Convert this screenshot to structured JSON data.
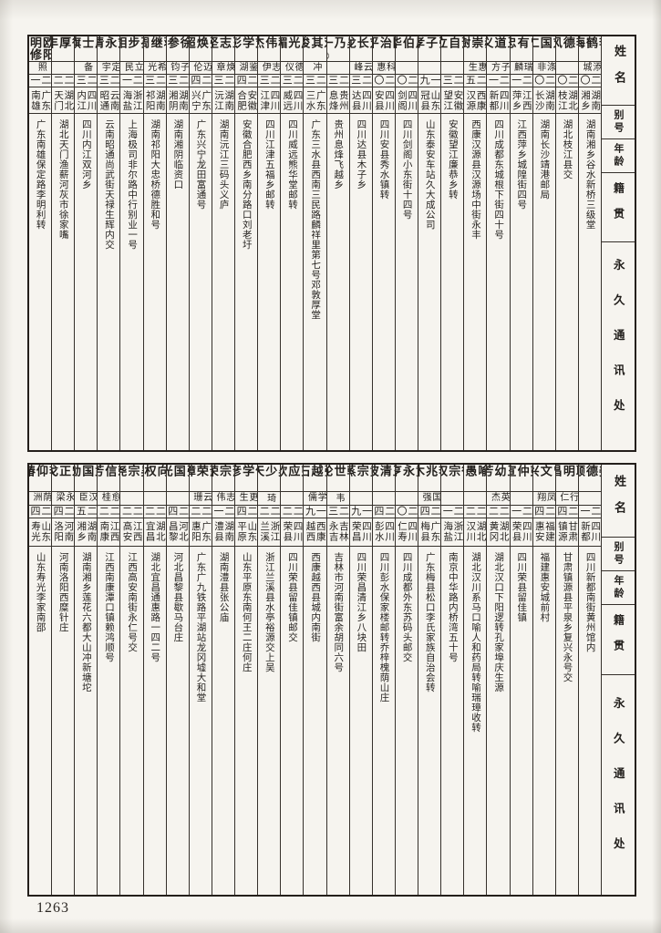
{
  "page": {
    "number": "1263"
  },
  "headers": {
    "name": "姓名",
    "alias": "别号",
    "age": "年龄",
    "native": "籍贯",
    "address": "永久通讯处"
  },
  "tables": {
    "top": {
      "people": [
        {
          "name": "李鹤梅",
          "alias": "添城",
          "age": "二〇",
          "native": "湖南湘乡",
          "address": "湖南湘乡谷水新桥三级堂"
        },
        {
          "name": "李德风",
          "alias": "",
          "age": "二〇",
          "native": "湖北枝江",
          "address": "湖北枝江县交"
        },
        {
          "name": "刘国仁",
          "alias": "涤非",
          "age": "二〇",
          "native": "湖南长沙",
          "address": "湖南长沙靖港邮局"
        },
        {
          "name": "曾有忠",
          "alias": "瑞麟",
          "age": "二一",
          "native": "江西萍乡",
          "address": "江西萍乡城隍街四号"
        },
        {
          "name": "王道义",
          "alias": "子方",
          "age": "二一",
          "native": "四川新都",
          "address": "四川成都东城根下街四十号"
        },
        {
          "name": "郝崇澍",
          "alias": "惠生",
          "age": "二五",
          "native": "西康汉源",
          "address": "西康汉源县汉源场中街永丰"
        },
        {
          "name": "萧自立",
          "alias": "",
          "age": "二三",
          "native": "安徽望江",
          "address": "安徽望江廉恭乡转"
        },
        {
          "name": "张子孝",
          "alias": "",
          "age": "一九",
          "native": "山东冠县",
          "address": "山东泰安车站久大成公司"
        },
        {
          "name": "周伯华",
          "alias": "",
          "age": "二〇",
          "native": "四川剑阁",
          "address": "四川剑阁小东街十四号"
        },
        {
          "name": "陈治平",
          "alias": "科惠",
          "age": "二〇",
          "native": "四川安县",
          "address": "四川安县秀水镇转"
        },
        {
          "name": "刘长龙",
          "alias": "云峰",
          "age": "二三",
          "native": "四川达县",
          "address": "四川达县木子乡"
        },
        {
          "name": "吴乃一",
          "mark": "㊛",
          "alias": "",
          "age": "二三",
          "native": "贵州息烽",
          "address": "贵州息烽飞越乡"
        },
        {
          "name": "邓其俊",
          "alias": "冲",
          "age": "二三",
          "native": "广东三水",
          "address": "广东三水县西南三民路麟祥里第七号邓敦厚堂"
        },
        {
          "name": "周光楣",
          "alias": "德仪",
          "age": "二三",
          "native": "四川威远",
          "address": "四川威远熊华堂邮转"
        },
        {
          "name": "程伟杰",
          "alias": "志伊",
          "age": "二三",
          "native": "四川江津",
          "address": "四川江津五福乡邮转"
        },
        {
          "name": "刘学彭",
          "alias": "鉴湖",
          "age": "二四",
          "native": "安徽合肥",
          "address": "安徽合肥西乡南分路口刘老圩"
        },
        {
          "name": "王志坚",
          "alias": "焕章",
          "age": "二三",
          "native": "湖南沅江",
          "address": "湖南沅江三码头义庐"
        },
        {
          "name": "张焕超",
          "alias": "迈伦",
          "age": "二四",
          "native": "广东兴宁",
          "address": "广东兴宁龙田富通号"
        },
        {
          "name": "徐参",
          "alias": "子钧",
          "age": "二三",
          "native": "湖南湘阴",
          "address": "湖南湘阴临资口"
        },
        {
          "name": "蒋继周",
          "alias": "希光",
          "age": "二三",
          "native": "湖南祁阳",
          "address": "湖南祁阳大忠桥德胜和号"
        },
        {
          "name": "孙步相",
          "alias": "立民",
          "age": "二一",
          "native": "浙江海盐",
          "address": "上海极司非尔路中行别业一号"
        },
        {
          "name": "刘永清",
          "alias": "定宇",
          "age": "二三",
          "native": "云南昭通",
          "address": "云南昭通尚武街天禄生辉内交"
        },
        {
          "name": "周士旗",
          "alias": "备",
          "age": "二三",
          "native": "四川内江",
          "address": "四川内江双河乡"
        },
        {
          "name": "徐厚丰",
          "alias": "",
          "age": "二二",
          "native": "湖北天门",
          "address": "湖北天门渔薪河灰市徐家嘴"
        },
        {
          "name": "欧阳明修",
          "alias": "照",
          "age": "二一",
          "native": "广东南雄",
          "address": "广东南雄保定路李明利转"
        }
      ]
    },
    "bottom": {
      "people": [
        {
          "name": "姜德颐",
          "alias": "",
          "age": "二一",
          "native": "四川新都",
          "address": "四川新都南街黄州馆内"
        },
        {
          "name": "耿明昌",
          "alias": "行仁",
          "age": "二四",
          "native": "甘肃镇源",
          "address": "甘肃镇源县平泉乡复兴永号交"
        },
        {
          "name": "曾文兴",
          "alias": "凤翔",
          "age": "二四",
          "native": "福建惠安",
          "address": "福建惠安城前村"
        },
        {
          "name": "彭仲宣",
          "alias": "",
          "age": "二一",
          "native": "四川荣县",
          "address": "四川荣县留佳镇"
        },
        {
          "name": "王幼芳",
          "alias": "英杰",
          "age": "二二",
          "native": "湖北黄冈",
          "address": "湖北汉口下阳逻转孔家埠庆生源"
        },
        {
          "name": "喻愚",
          "alias": "",
          "age": "二二",
          "native": "湖北汉川",
          "address": "湖北汉川系马口喻人和药局转喻瑞璋收转"
        },
        {
          "name": "徐宗权",
          "alias": "",
          "age": "二一",
          "native": "浙江海盐",
          "address": "南京中华路内桥湾五十号"
        },
        {
          "name": "李兆木",
          "alias": "国强",
          "age": "二四",
          "native": "广东梅县",
          "address": "广东梅县松口李氏家族自治会转"
        },
        {
          "name": "黄永亨",
          "alias": "",
          "age": "二〇",
          "native": "四川仁寿",
          "address": "四川成都外东苏码头邮交"
        },
        {
          "name": "王清波",
          "alias": "",
          "age": "二四",
          "native": "四川彭水",
          "address": "四川彭水保家楼邮转乔梓槐荫山庄"
        },
        {
          "name": "黄宗蒸",
          "alias": "",
          "age": "一九",
          "native": "四川荣昌",
          "address": "四川荣昌清江乡八块田"
        },
        {
          "name": "韩世纶",
          "alias": "韦",
          "age": "二三",
          "native": "吉林永吉",
          "address": "吉林市河南街富余胡同六号"
        },
        {
          "name": "张越石",
          "alias": "学儒",
          "age": "一九",
          "native": "西康越西",
          "address": "西康越西县城内南街"
        },
        {
          "name": "彭应钦",
          "alias": "",
          "age": "二二",
          "native": "四川荣县",
          "address": "四川荣县留佳镇邮交"
        },
        {
          "name": "吴少天",
          "alias": "琦",
          "age": "二二",
          "native": "浙江兰溪",
          "address": "浙江兰溪县水亭裕源交上吴"
        },
        {
          "name": "何学彦",
          "alias": "更生",
          "age": "二四",
          "native": "山东平原",
          "address": "山东平原东南何王二庄何庄"
        },
        {
          "name": "萧宗荣",
          "alias": "志伟",
          "age": "二一",
          "native": "湖南澧县",
          "address": "湖南澧县张公庙"
        },
        {
          "name": "萧荣璋",
          "alias": "云珊",
          "age": "二二",
          "native": "广东惠阳",
          "address": "广东广九铁路平湖站龙冈墟大和堂"
        },
        {
          "name": "张国光",
          "alias": "",
          "age": "二四",
          "native": "河北昌黎",
          "address": "河北昌黎县歇马台庄"
        },
        {
          "name": "向权",
          "alias": "",
          "age": "二二",
          "native": "湖北宜昌",
          "address": "湖北宜昌通惠路一四二号"
        },
        {
          "name": "吴宗尧",
          "alias": "",
          "age": "二二",
          "native": "江西高安",
          "address": "江西高安南街永仁号交"
        },
        {
          "name": "赖信芳",
          "alias": "愈桂",
          "age": "二二",
          "native": "江西南康",
          "address": "江西南康潭口镇赖鸿顺号"
        },
        {
          "name": "武国勋",
          "alias": "汉臣",
          "age": "二五",
          "native": "湖南湘乡",
          "address": "湖南湘乡莲花六都大山冲新塘坨"
        },
        {
          "name": "宋正戈",
          "alias": "永梁",
          "age": "二四",
          "native": "河南洛阳",
          "address": "河南洛阳西糜针庄"
        },
        {
          "name": "李仰椿",
          "alias": "荫洲",
          "age": "二四",
          "native": "山东寿光",
          "address": "山东寿光李家南邵"
        }
      ]
    }
  }
}
